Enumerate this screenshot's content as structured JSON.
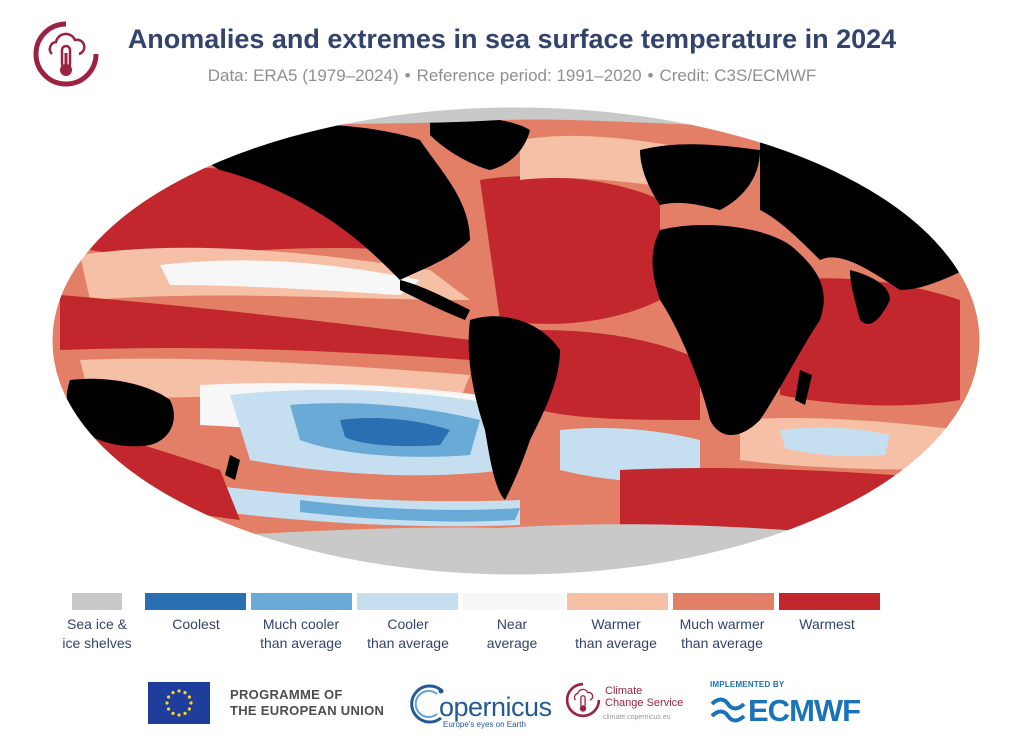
{
  "header": {
    "title": "Anomalies and extremes in sea surface temperature in 2024",
    "subtitle_data": "Data: ERA5 (1979–2024)",
    "subtitle_ref": "Reference period: 1991–2020",
    "subtitle_credit": "Credit: C3S/ECMWF",
    "separator": "•"
  },
  "legend": [
    {
      "label": "Sea ice &\nice shelves",
      "color": "#c9c9c9"
    },
    {
      "label": "Coolest",
      "color": "#2b6fb3"
    },
    {
      "label": "Much cooler\nthan average",
      "color": "#6aaad6"
    },
    {
      "label": "Cooler\nthan average",
      "color": "#c6dff0"
    },
    {
      "label": "Near\naverage",
      "color": "#f7f7f7"
    },
    {
      "label": "Warmer\nthan average",
      "color": "#f6c0a6"
    },
    {
      "label": "Much warmer\nthan average",
      "color": "#e27f66"
    },
    {
      "label": "Warmest",
      "color": "#c1272d"
    }
  ],
  "map_colors": {
    "land": "#000000",
    "sea_ice": "#c9c9c9",
    "warmest": "#c1272d",
    "much_warmer": "#e27f66",
    "warmer": "#f6c0a6",
    "near": "#f7f7f7",
    "cooler": "#c6dff0",
    "much_cooler": "#6aaad6",
    "coolest": "#2b6fb3"
  },
  "footer": {
    "eu_line1": "PROGRAMME OF",
    "eu_line2": "THE EUROPEAN UNION",
    "copernicus_word": "opernicus",
    "copernicus_tagline": "Europe's eyes on Earth",
    "c3s_line1": "Climate",
    "c3s_line2": "Change Service",
    "c3s_url": "climate.copernicus.eu",
    "ecmwf_implemented": "IMPLEMENTED BY",
    "ecmwf_word": "ECMWF"
  }
}
